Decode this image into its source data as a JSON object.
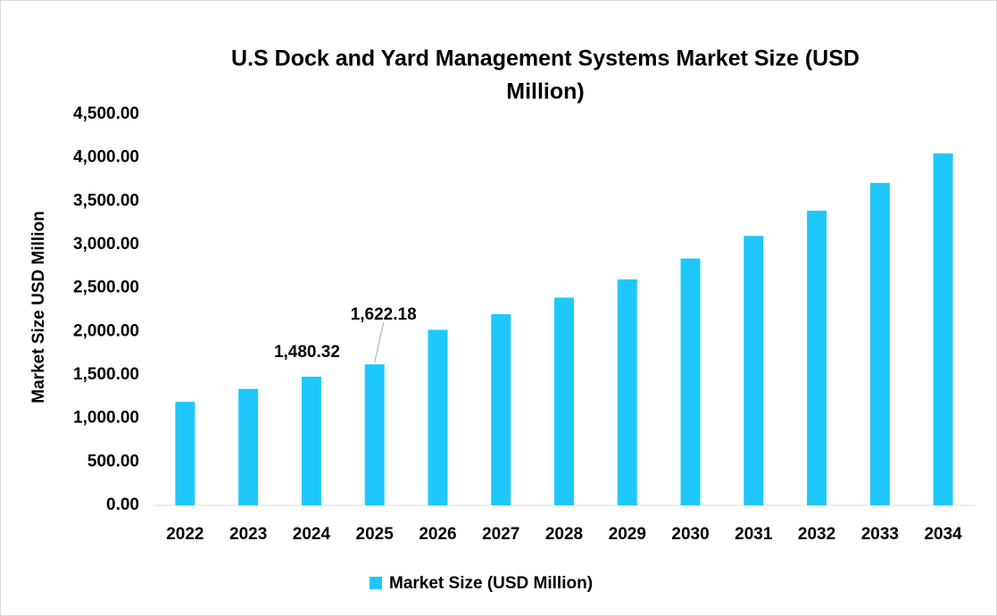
{
  "chart_data": {
    "type": "bar",
    "title_lines": [
      "U.S Dock and Yard Management Systems Market Size (USD",
      "Million)"
    ],
    "y_label": "Market Size USD Million",
    "categories": [
      "2022",
      "2023",
      "2024",
      "2025",
      "2026",
      "2027",
      "2028",
      "2029",
      "2030",
      "2031",
      "2032",
      "2033",
      "2034"
    ],
    "series": [
      {
        "name": "Market Size (USD Million)",
        "color": "#1fc8fa",
        "values": [
          1190,
          1340,
          1480.32,
          1622.18,
          2020,
          2200,
          2390,
          2600,
          2840,
          3100,
          3390,
          3710,
          4050
        ],
        "value_labels": [
          null,
          null,
          "1,480.32",
          "1,622.18",
          null,
          null,
          null,
          null,
          null,
          null,
          null,
          null,
          null
        ]
      }
    ],
    "ylim": [
      0,
      4500
    ],
    "yticks": [
      {
        "value": 0,
        "label": "0.00"
      },
      {
        "value": 500,
        "label": "500.00"
      },
      {
        "value": 1000,
        "label": "1,000.00"
      },
      {
        "value": 1500,
        "label": "1,500.00"
      },
      {
        "value": 2000,
        "label": "2,000.00"
      },
      {
        "value": 2500,
        "label": "2,500.00"
      },
      {
        "value": 3000,
        "label": "3,000.00"
      },
      {
        "value": 3500,
        "label": "3,500.00"
      },
      {
        "value": 4000,
        "label": "4,000.00"
      },
      {
        "value": 4500,
        "label": "4,500.00"
      }
    ],
    "grid": false,
    "legend": "bottom"
  }
}
